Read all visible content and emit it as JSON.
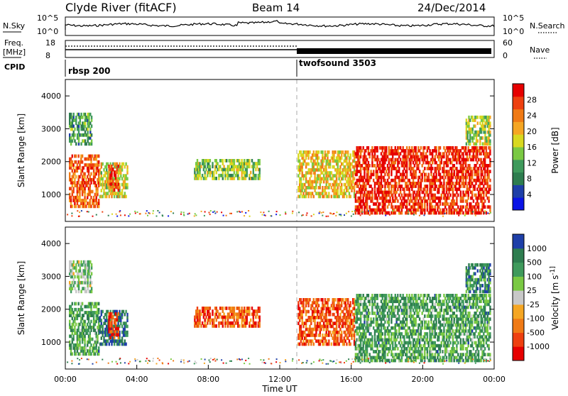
{
  "header": {
    "station": "Clyde River (fitACF)",
    "beam": "Beam 14",
    "date": "24/Dec/2014"
  },
  "strips": {
    "nsky_label": "N.Sky",
    "nsearch_label": "N.Search",
    "freq_label_top": "Freq.",
    "freq_label_unit": "[MHz]",
    "nave_label": "Nave",
    "cpid_label": "CPID",
    "nsky_ticks": [
      "10^5",
      "10^0"
    ],
    "nsearch_ticks": [
      "10^5",
      "10^0"
    ],
    "freq_ticks": [
      "18",
      "8"
    ],
    "nave_ticks": [
      "60",
      "0"
    ],
    "cpid_segments": [
      {
        "name": "rbsp 200",
        "start_hour": 0
      },
      {
        "name": "twofsound 3503",
        "start_hour": 13
      }
    ]
  },
  "time_axis": {
    "label": "Time UT",
    "ticks": [
      "00:00",
      "04:00",
      "08:00",
      "12:00",
      "16:00",
      "20:00",
      "00:00"
    ]
  },
  "chart_data": [
    {
      "type": "heatmap",
      "title": "",
      "xlabel": "Time UT",
      "ylabel": "Slant Range [km]",
      "xlim_hours": [
        0,
        24
      ],
      "ylim": [
        180,
        4500
      ],
      "y_ticks": [
        "1000",
        "2000",
        "3000",
        "4000"
      ],
      "colorbar": {
        "label": "Power [dB]",
        "ticks": [
          "28",
          "24",
          "20",
          "16",
          "12",
          "8",
          "4"
        ],
        "range": [
          0,
          30
        ],
        "colors": [
          "#0a14e6",
          "#1e3fa8",
          "#2e7d4f",
          "#3f9a5c",
          "#7ac943",
          "#d8d820",
          "#f5a623",
          "#f07a15",
          "#ee4010",
          "#e60000"
        ]
      },
      "echo_regions": [
        {
          "t0": 0.2,
          "t1": 1.9,
          "r0": 600,
          "r1": 2200,
          "level": 0.8
        },
        {
          "t0": 1.9,
          "t1": 3.5,
          "r0": 900,
          "r1": 2000,
          "level": 0.55
        },
        {
          "t0": 2.4,
          "t1": 3.0,
          "r0": 1100,
          "r1": 1900,
          "level": 0.85
        },
        {
          "t0": 7.2,
          "t1": 10.9,
          "r0": 1450,
          "r1": 2100,
          "level": 0.45
        },
        {
          "t0": 13.0,
          "t1": 16.2,
          "r0": 900,
          "r1": 2300,
          "level": 0.6
        },
        {
          "t0": 16.2,
          "t1": 23.8,
          "r0": 400,
          "r1": 2500,
          "level": 0.9
        },
        {
          "t0": 22.4,
          "t1": 23.8,
          "r0": 2500,
          "r1": 3400,
          "level": 0.5
        },
        {
          "t0": 0.2,
          "t1": 1.5,
          "r0": 2500,
          "r1": 3500,
          "level": 0.35
        }
      ]
    },
    {
      "type": "heatmap",
      "title": "",
      "xlabel": "Time UT",
      "ylabel": "Slant Range [km]",
      "xlim_hours": [
        0,
        24
      ],
      "ylim": [
        180,
        4500
      ],
      "y_ticks": [
        "1000",
        "2000",
        "3000",
        "4000"
      ],
      "colorbar": {
        "label": "Velocity [m s^-1]",
        "ticks": [
          "1000",
          "500",
          "100",
          "25",
          "-25",
          "-100",
          "-500",
          "-1000"
        ],
        "range": [
          -1000,
          1000
        ],
        "colors": [
          "#e60000",
          "#ee4010",
          "#f07a15",
          "#f5a623",
          "#c8c8c8",
          "#7ac943",
          "#3f9a5c",
          "#2e7d4f",
          "#1e3fa8"
        ]
      },
      "echo_regions": [
        {
          "t0": 0.2,
          "t1": 1.9,
          "r0": 600,
          "r1": 2200,
          "level": 0.72
        },
        {
          "t0": 1.9,
          "t1": 3.5,
          "r0": 900,
          "r1": 2000,
          "level": 0.85
        },
        {
          "t0": 2.4,
          "t1": 3.0,
          "r0": 1100,
          "r1": 1900,
          "level": 0.15
        },
        {
          "t0": 7.2,
          "t1": 10.9,
          "r0": 1450,
          "r1": 2100,
          "level": 0.2
        },
        {
          "t0": 13.0,
          "t1": 16.2,
          "r0": 900,
          "r1": 2300,
          "level": 0.2
        },
        {
          "t0": 16.2,
          "t1": 23.8,
          "r0": 400,
          "r1": 2500,
          "level": 0.72
        },
        {
          "t0": 22.4,
          "t1": 23.8,
          "r0": 2500,
          "r1": 3400,
          "level": 0.8
        },
        {
          "t0": 0.2,
          "t1": 1.5,
          "r0": 2500,
          "r1": 3500,
          "level": 0.6
        }
      ]
    }
  ]
}
